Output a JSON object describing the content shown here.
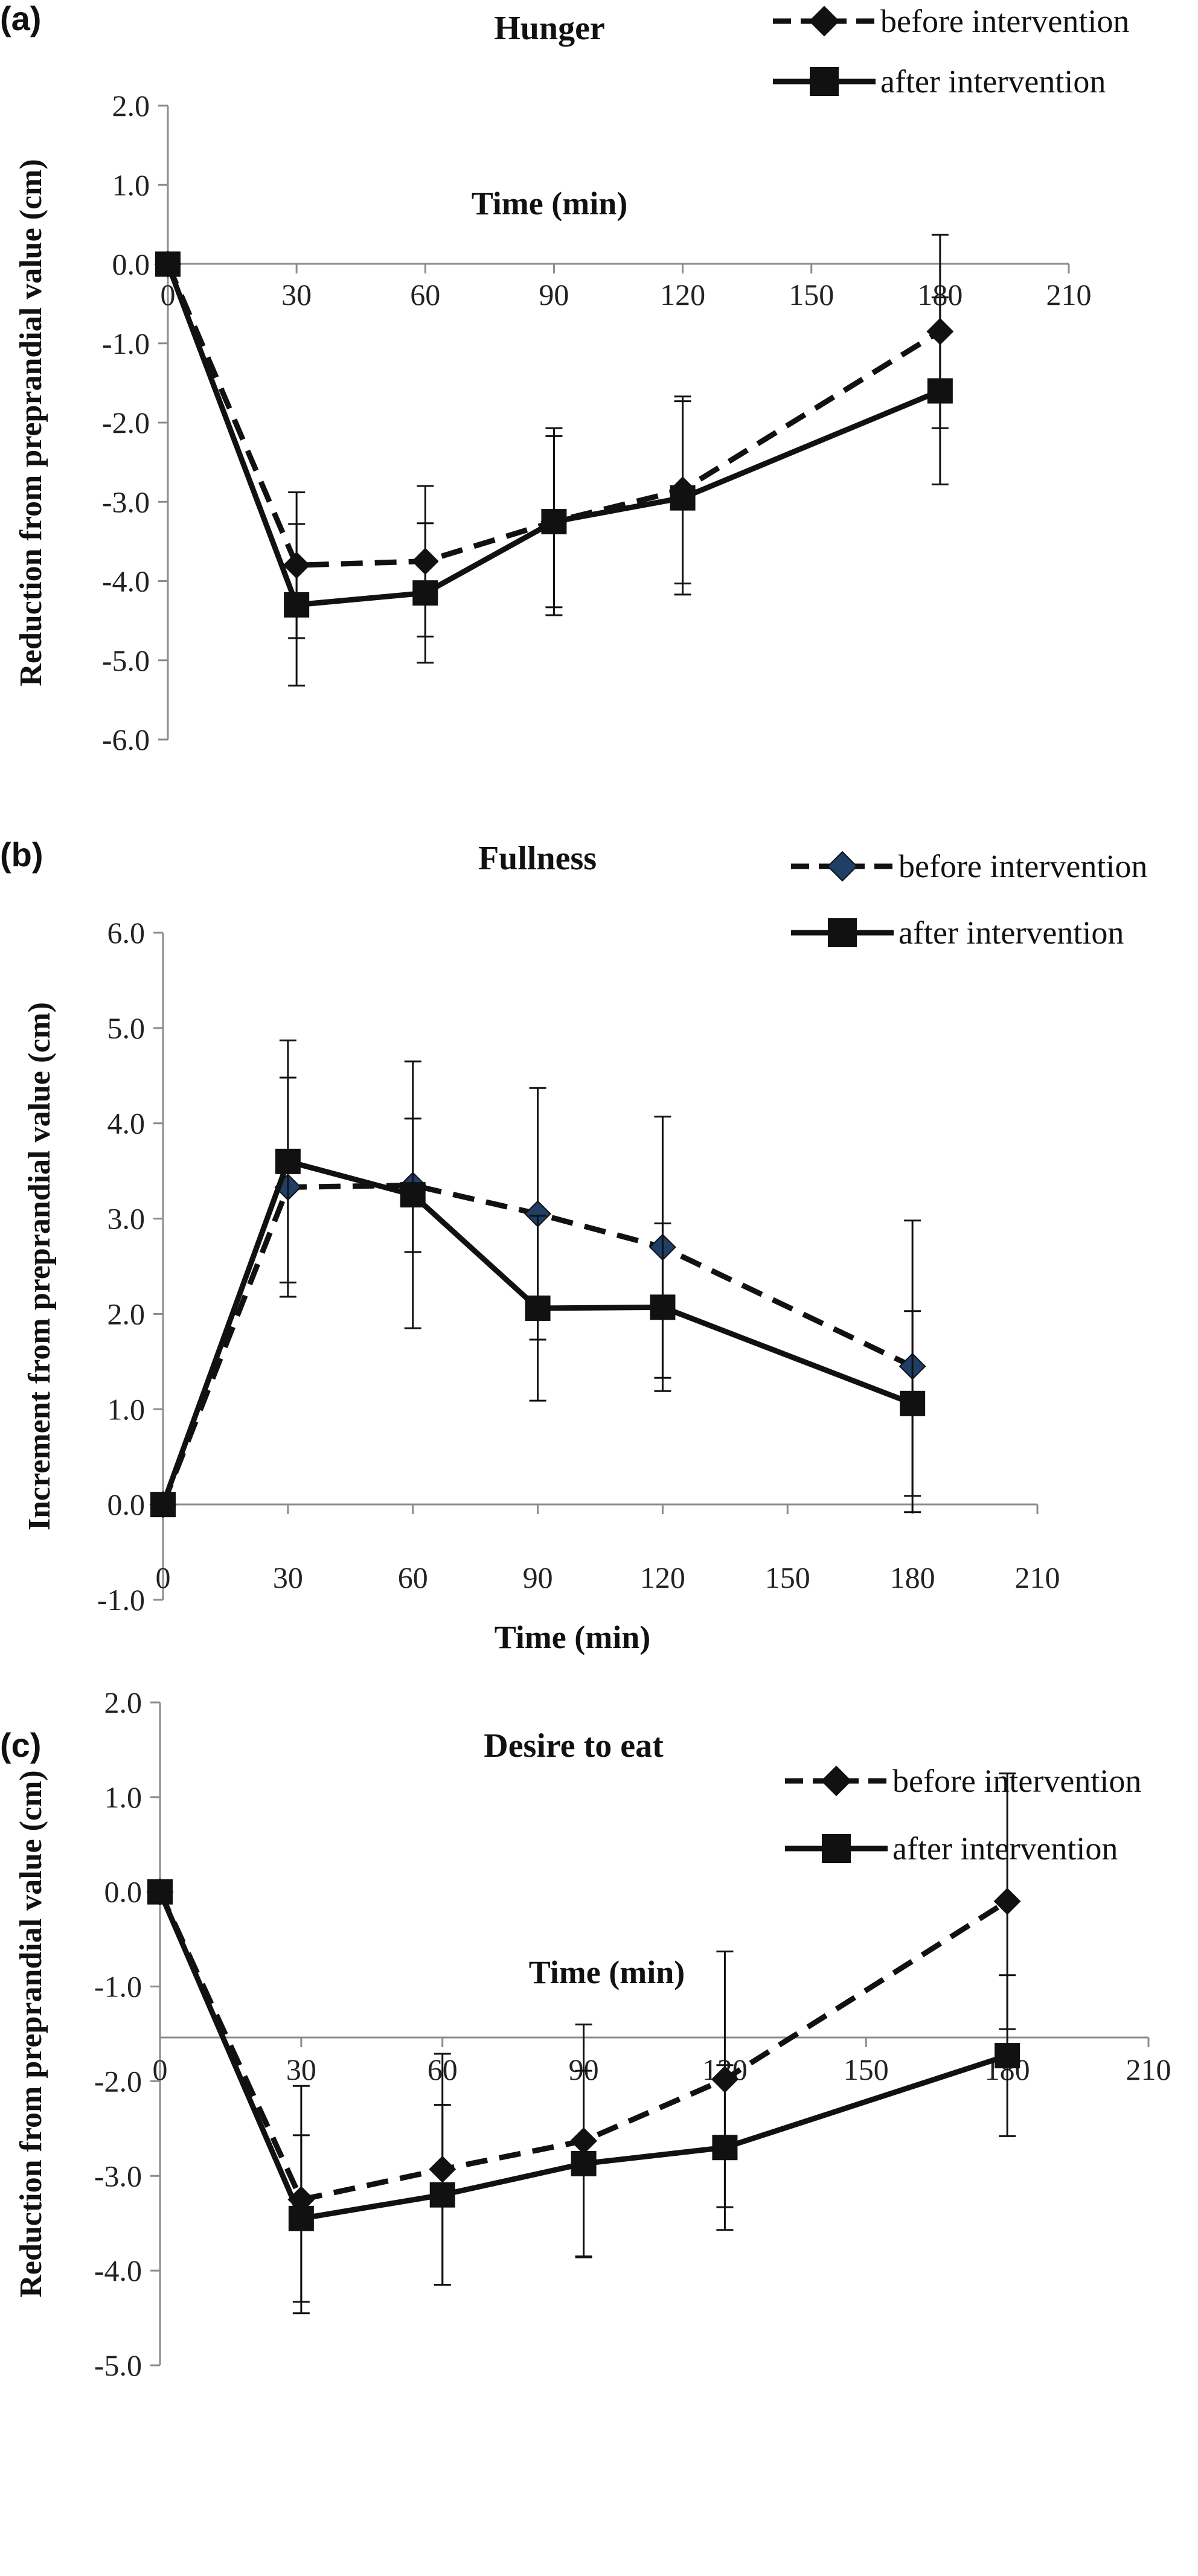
{
  "chart_data": [
    {
      "type": "line",
      "panel_label": "(a)",
      "title": "Hunger",
      "xlabel": "Time (min)",
      "ylabel": "Reduction from preprandial value (cm)",
      "xlim": [
        0,
        210
      ],
      "ylim": [
        -6.0,
        2.0
      ],
      "x_ticks": [
        "0",
        "30",
        "60",
        "90",
        "120",
        "150",
        "180",
        "210"
      ],
      "y_ticks": [
        "2.0",
        "1.0",
        "0.0",
        "-1.0",
        "-2.0",
        "-3.0",
        "-4.0",
        "-5.0",
        "-6.0"
      ],
      "x": [
        0,
        30,
        60,
        90,
        120,
        180
      ],
      "series": [
        {
          "name": "before intervention",
          "marker": "diamond",
          "line": "dashed",
          "values": [
            0.0,
            -3.8,
            -3.75,
            -3.25,
            -2.85,
            -0.85
          ],
          "error": [
            0,
            0.92,
            0.95,
            1.18,
            1.18,
            1.22
          ]
        },
        {
          "name": "after intervention",
          "marker": "square",
          "line": "solid",
          "values": [
            0.0,
            -4.3,
            -4.15,
            -3.25,
            -2.95,
            -1.6
          ],
          "error": [
            0,
            1.02,
            0.88,
            1.08,
            1.22,
            1.18
          ]
        }
      ],
      "legend_position": "top-right",
      "grid": false
    },
    {
      "type": "line",
      "panel_label": "(b)",
      "title": "Fullness",
      "xlabel": "Time (min)",
      "ylabel": "Increment from preprandial value (cm)",
      "xlim": [
        0,
        210
      ],
      "ylim": [
        -1.0,
        6.0
      ],
      "x_ticks": [
        "0",
        "30",
        "60",
        "90",
        "120",
        "150",
        "180",
        "210"
      ],
      "y_ticks": [
        "6.0",
        "5.0",
        "4.0",
        "3.0",
        "2.0",
        "1.0",
        "0.0",
        "-1.0"
      ],
      "x": [
        0,
        30,
        60,
        90,
        120,
        180
      ],
      "series": [
        {
          "name": "before intervention",
          "marker": "diamond",
          "line": "dashed",
          "values": [
            0.0,
            3.33,
            3.35,
            3.05,
            2.7,
            1.45
          ],
          "error": [
            0,
            1.15,
            0.7,
            1.32,
            1.37,
            1.53
          ]
        },
        {
          "name": "after intervention",
          "marker": "square",
          "line": "solid",
          "values": [
            0.0,
            3.6,
            3.25,
            2.06,
            2.07,
            1.06
          ],
          "error": [
            0,
            1.27,
            1.4,
            0.97,
            0.88,
            0.97
          ]
        }
      ],
      "legend_position": "top-right",
      "grid": false
    },
    {
      "type": "line",
      "panel_label": "(c)",
      "title": "Desire  to eat",
      "xlabel": "Time (min)",
      "ylabel": "Reduction from preprandial value (cm)",
      "xlim": [
        0,
        210
      ],
      "ylim": [
        -5.0,
        2.0
      ],
      "x_ticks": [
        "0",
        "30",
        "60",
        "90",
        "120",
        "150",
        "180",
        "210"
      ],
      "y_ticks": [
        "2.0",
        "1.0",
        "0.0",
        "-1.0",
        "-2.0",
        "-3.0",
        "-4.0",
        "-5.0"
      ],
      "x": [
        0,
        30,
        60,
        90,
        120,
        180
      ],
      "series": [
        {
          "name": "before intervention",
          "marker": "diamond",
          "line": "dashed",
          "values": [
            0.0,
            -3.25,
            -2.93,
            -2.63,
            -1.98,
            -0.1
          ],
          "error": [
            0,
            1.2,
            1.22,
            1.23,
            1.35,
            1.35
          ]
        },
        {
          "name": "after intervention",
          "marker": "square",
          "line": "solid",
          "values": [
            0.0,
            -3.45,
            -3.2,
            -2.87,
            -2.7,
            -1.73
          ],
          "error": [
            0,
            0.88,
            0.95,
            0.98,
            0.87,
            0.85
          ]
        }
      ],
      "legend_position": "top-right",
      "grid": false
    }
  ]
}
